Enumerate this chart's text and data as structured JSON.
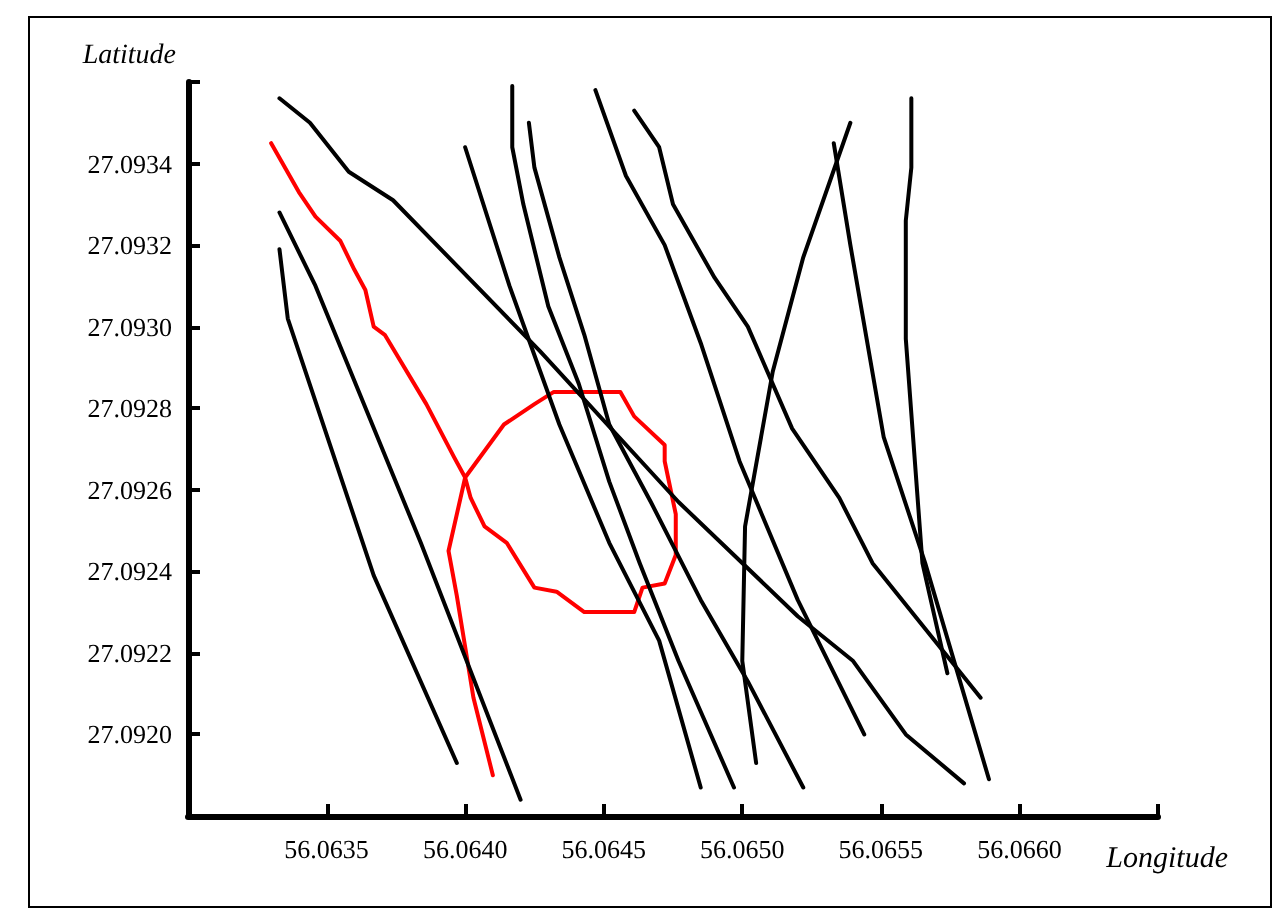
{
  "chart_data": {
    "type": "line",
    "xlabel": "Longitude",
    "ylabel": "Latitude",
    "xlim": [
      56.063,
      56.0665
    ],
    "xticks": [
      56.0635,
      {
        "value": 56.064,
        "label": "56.0640"
      },
      56.0645,
      {
        "value": 56.065,
        "label": "56.0650"
      },
      56.0655,
      {
        "value": 56.066,
        "label": "56.0660"
      },
      {
        "value": 56.0665,
        "label": null
      }
    ],
    "ylim": [
      27.0918,
      27.0936
    ],
    "yticks": [
      {
        "value": 27.092,
        "label": "27.0920"
      },
      27.0922,
      27.0924,
      27.0926,
      27.0928,
      {
        "value": 27.093,
        "label": "27.0930"
      },
      27.0932,
      27.0934,
      {
        "value": 27.0936,
        "label": null
      }
    ],
    "grid": false,
    "marker": "none",
    "line_style": "solid",
    "series": [
      {
        "color": "#ff0000",
        "x": [
          56.0633,
          56.0634,
          56.06346,
          56.06355,
          56.0636,
          56.06364,
          56.06367,
          56.06371,
          56.06386,
          56.06396,
          56.064,
          56.06402,
          56.06407,
          56.06415,
          56.06425,
          56.06433,
          56.06443,
          56.06461,
          56.06464,
          56.06472,
          56.06476,
          56.06476,
          56.06472,
          56.06472,
          56.06461,
          56.06456,
          56.06432,
          56.06425,
          56.06414,
          56.064,
          56.06394,
          56.06397,
          56.06403,
          56.0641
        ],
        "values": [
          27.09345,
          27.09333,
          27.09327,
          27.09321,
          27.09314,
          27.09309,
          27.093,
          27.09298,
          27.09281,
          27.09268,
          27.09263,
          27.09258,
          27.09251,
          27.09247,
          27.09236,
          27.09235,
          27.0923,
          27.0923,
          27.09236,
          27.09237,
          27.09244,
          27.09254,
          27.09267,
          27.09271,
          27.09278,
          27.09284,
          27.09284,
          27.09281,
          27.09276,
          27.09263,
          27.09245,
          27.09234,
          27.09209,
          27.0919
        ]
      },
      {
        "color": "#000000",
        "x": [
          56.06333,
          56.06336,
          56.06367,
          56.06397
        ],
        "values": [
          27.09319,
          27.09302,
          27.09239,
          27.09193
        ]
      },
      {
        "color": "#000000",
        "x": [
          56.06333,
          56.06346,
          56.06384,
          56.0642
        ],
        "values": [
          27.09328,
          27.0931,
          27.09247,
          27.09184
        ]
      },
      {
        "color": "#000000",
        "x": [
          56.06333,
          56.06344,
          56.06358,
          56.06374,
          56.06427,
          56.06477,
          56.0652,
          56.0654,
          56.06559,
          56.0658
        ],
        "values": [
          27.09356,
          27.0935,
          27.09338,
          27.09331,
          27.09294,
          27.09257,
          27.09229,
          27.09218,
          27.092,
          27.09188
        ]
      },
      {
        "color": "#000000",
        "x": [
          56.064,
          56.06416,
          56.06434,
          56.06452,
          56.0647,
          56.06485
        ],
        "values": [
          27.09344,
          27.0931,
          27.09276,
          27.09247,
          27.09223,
          27.09187
        ]
      },
      {
        "color": "#000000",
        "x": [
          56.06417,
          56.06417,
          56.06421,
          56.0643,
          56.06441,
          56.06452,
          56.06463,
          56.06477,
          56.06497
        ],
        "values": [
          27.09359,
          27.09344,
          27.0933,
          27.09305,
          27.09286,
          27.09262,
          27.09242,
          27.09218,
          27.09187
        ]
      },
      {
        "color": "#000000",
        "x": [
          56.06423,
          56.06425,
          56.06434,
          56.06443,
          56.06452,
          56.06467,
          56.06485,
          56.06502,
          56.06522
        ],
        "values": [
          27.0935,
          27.09339,
          27.09317,
          27.09298,
          27.09276,
          27.09257,
          27.09233,
          27.09213,
          27.09187
        ]
      },
      {
        "color": "#000000",
        "x": [
          56.06447,
          56.06458,
          56.06472,
          56.06485,
          56.06499,
          56.0652,
          56.06544
        ],
        "values": [
          27.09358,
          27.09337,
          27.0932,
          27.09296,
          27.09267,
          27.09233,
          27.092
        ]
      },
      {
        "color": "#000000",
        "x": [
          56.06461,
          56.0647,
          56.06475,
          56.0649,
          56.06502,
          56.06518,
          56.06535,
          56.06547,
          56.06586
        ],
        "values": [
          27.09353,
          27.09344,
          27.0933,
          27.09312,
          27.093,
          27.09275,
          27.09258,
          27.09242,
          27.09209
        ]
      },
      {
        "color": "#000000",
        "x": [
          56.06505,
          56.065,
          56.06501,
          56.06511,
          56.06522,
          56.06539
        ],
        "values": [
          27.09193,
          27.09218,
          27.09251,
          27.09289,
          27.09317,
          27.0935
        ]
      },
      {
        "color": "#000000",
        "x": [
          56.06533,
          56.06539,
          56.06551,
          56.06566,
          56.06589
        ],
        "values": [
          27.09345,
          27.0932,
          27.09273,
          27.09242,
          27.09189
        ]
      },
      {
        "color": "#000000",
        "x": [
          56.06561,
          56.06561,
          56.06559,
          56.06559,
          56.06565,
          56.06574
        ],
        "values": [
          27.09356,
          27.09339,
          27.09326,
          27.09297,
          27.09242,
          27.09215
        ]
      }
    ]
  }
}
